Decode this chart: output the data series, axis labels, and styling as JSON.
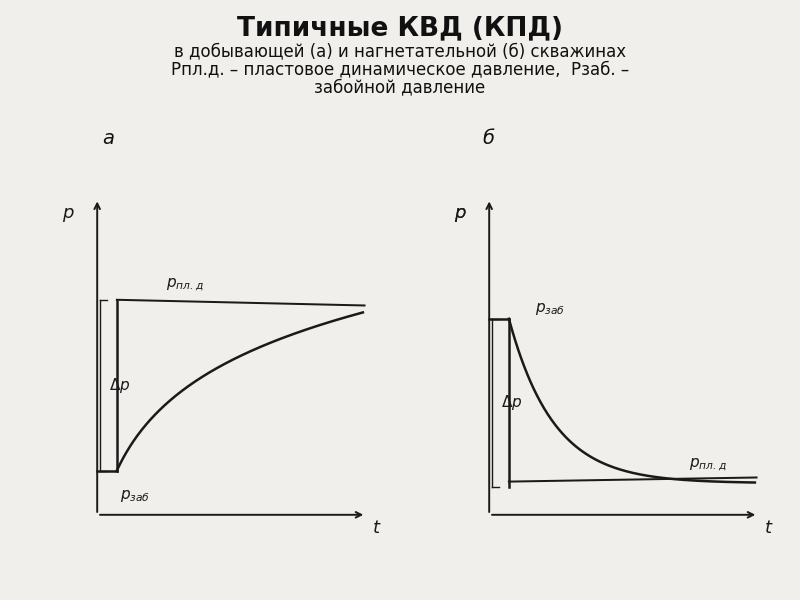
{
  "title_line1": "Типичные КВД (КПД)",
  "title_line2": "в добывающей (а) и нагнетательной (б) скважинах",
  "title_line3": "Рпл.д. – пластовое динамическое давление,  Рзаб. –",
  "title_line4": "забойной давление",
  "background_color": "#f0efeb",
  "label_a": "а",
  "label_b": "б",
  "p_label": "р",
  "t_label": "t",
  "delta_p_label": "Δp",
  "p_pl_d_label_a": "рпл. д",
  "p_zab_label_a": "рзаб",
  "p_zab_label_b": "рзаб",
  "p_pl_d_label_b": "рпл. д",
  "line_color": "#1a1a1a",
  "line_width": 1.8,
  "axis_color": "#1a1a1a",
  "font_size_title": 19,
  "font_size_subtitle": 12,
  "font_size_label": 13,
  "font_size_annotation": 11,
  "p_high_a": 0.68,
  "p_low_a": 0.14,
  "p_high_b": 0.62,
  "p_low_b": 0.1
}
